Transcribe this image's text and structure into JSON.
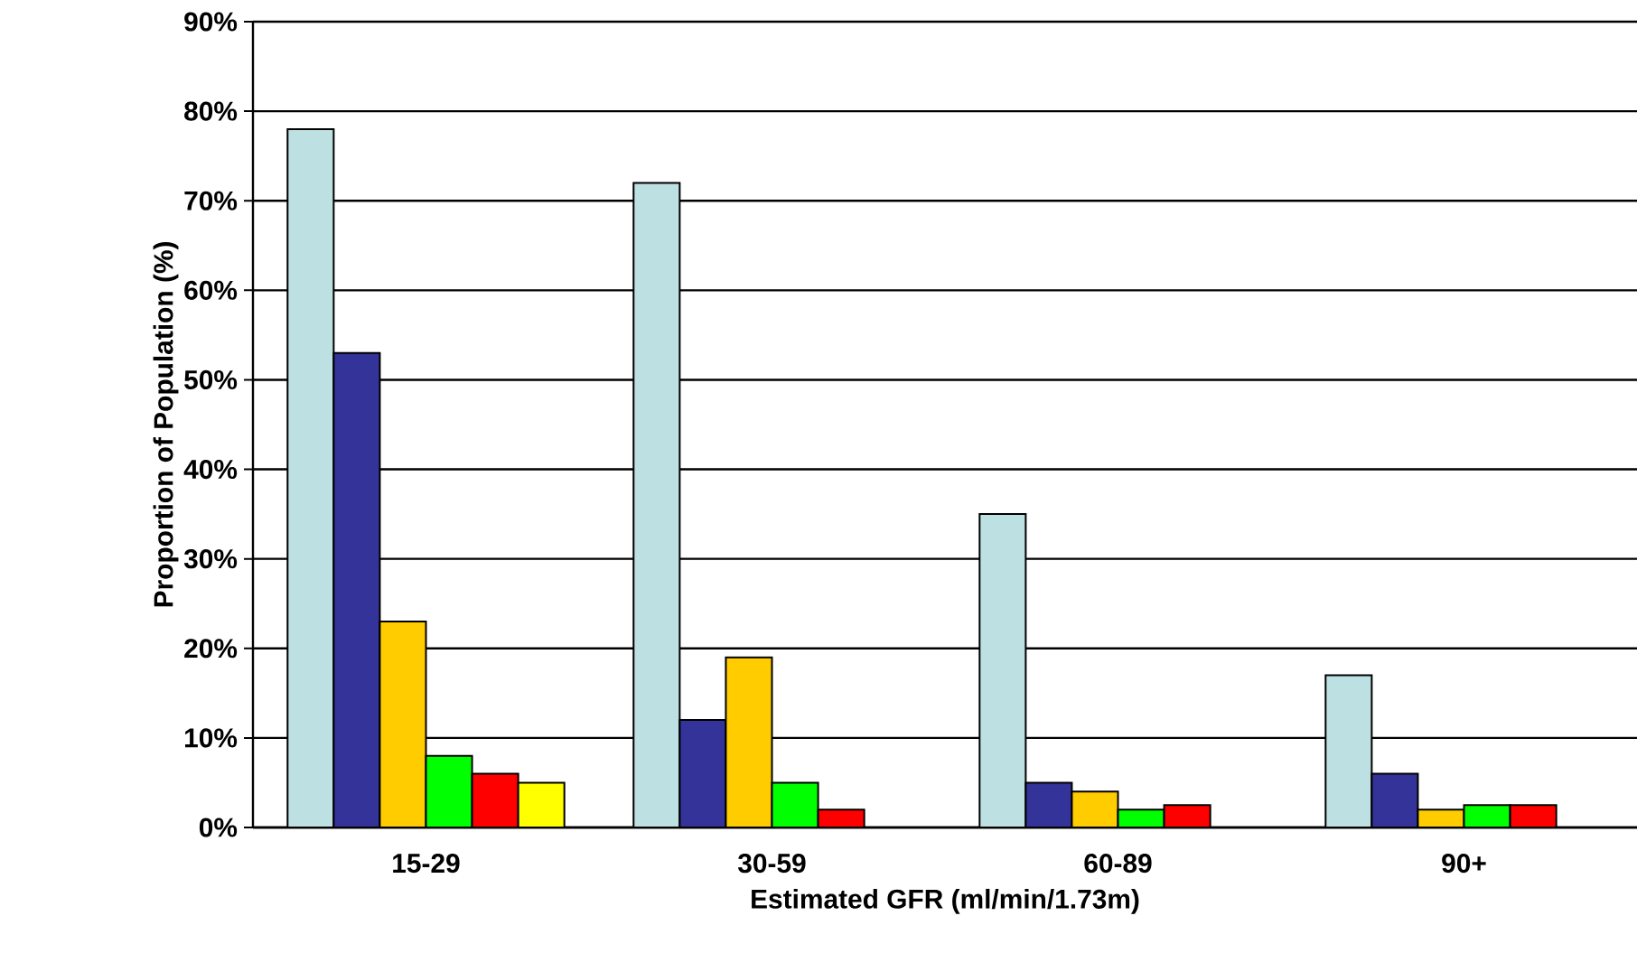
{
  "chart_data": {
    "type": "bar",
    "xlabel": "Estimated GFR (ml/min/1.73m)",
    "ylabel": "Proportion of Population (%)",
    "categories": [
      "15-29",
      "30-59",
      "60-89",
      "90+"
    ],
    "series": [
      {
        "color": "#bde0e3",
        "values": [
          78,
          72,
          35,
          17
        ]
      },
      {
        "color": "#333399",
        "values": [
          53,
          12,
          5,
          6
        ]
      },
      {
        "color": "#ffcc00",
        "values": [
          23,
          19,
          4,
          2
        ]
      },
      {
        "color": "#00ff00",
        "values": [
          8,
          5,
          2,
          2.5
        ]
      },
      {
        "color": "#ff0000",
        "values": [
          6,
          2,
          2.5,
          2.5
        ]
      },
      {
        "color": "#ffff00",
        "values": [
          5,
          null,
          null,
          null
        ]
      }
    ],
    "ylim": [
      0,
      90
    ],
    "yticks": [
      {
        "value": 0,
        "label": "0%"
      },
      {
        "value": 10,
        "label": "10%"
      },
      {
        "value": 20,
        "label": "20%"
      },
      {
        "value": 30,
        "label": "30%"
      },
      {
        "value": 40,
        "label": "40%"
      },
      {
        "value": 50,
        "label": "50%"
      },
      {
        "value": 60,
        "label": "60%"
      },
      {
        "value": 70,
        "label": "70%"
      },
      {
        "value": 80,
        "label": "80%"
      },
      {
        "value": 90,
        "label": "90%"
      }
    ],
    "grid": "y"
  }
}
